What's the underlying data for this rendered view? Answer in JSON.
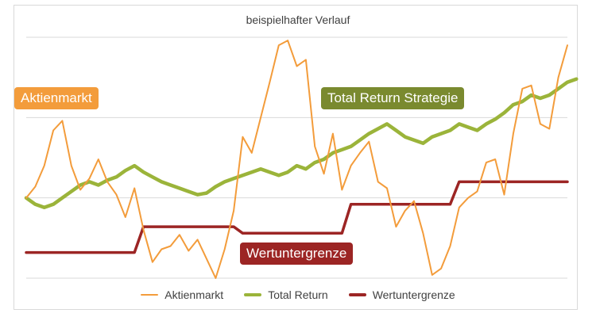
{
  "chart_data": {
    "type": "line",
    "title": "beispielhafter Verlauf",
    "grid": true,
    "legend_position": "bottom",
    "series": [
      {
        "name": "Aktienmarkt",
        "color": "#f39c3b",
        "values": [
          50,
          57,
          70,
          92,
          98,
          70,
          55,
          62,
          74,
          60,
          52,
          38,
          56,
          30,
          10,
          18,
          20,
          27,
          17,
          24,
          12,
          0,
          18,
          42,
          88,
          78,
          100,
          122,
          145,
          148,
          132,
          136,
          82,
          65,
          90,
          55,
          70,
          78,
          85,
          60,
          56,
          32,
          42,
          48,
          28,
          2,
          6,
          20,
          44,
          50,
          54,
          72,
          74,
          52,
          90,
          118,
          120,
          96,
          93,
          125,
          145
        ]
      },
      {
        "name": "Total Return",
        "color": "#9bb43a",
        "values": [
          50,
          46,
          44,
          46,
          50,
          54,
          58,
          60,
          58,
          61,
          63,
          67,
          70,
          66,
          63,
          60,
          58,
          56,
          54,
          52,
          53,
          57,
          60,
          62,
          64,
          66,
          68,
          66,
          64,
          66,
          70,
          68,
          72,
          74,
          78,
          80,
          82,
          86,
          90,
          93,
          96,
          92,
          88,
          86,
          84,
          88,
          90,
          92,
          96,
          94,
          92,
          96,
          99,
          103,
          108,
          110,
          114,
          112,
          114,
          118,
          122,
          124
        ]
      },
      {
        "name": "Wertuntergrenze",
        "color": "#9c2524",
        "x": [
          0,
          12,
          13,
          23,
          24,
          35,
          36,
          47,
          48,
          60
        ],
        "values": [
          16,
          16,
          32,
          32,
          28,
          28,
          46,
          46,
          60,
          60
        ]
      }
    ],
    "ylim": [
      0,
      150
    ],
    "annotations": [
      {
        "text": "Aktienmarkt",
        "color": "#f39c3b"
      },
      {
        "text": "Total Return Strategie",
        "color": "#7a8a2f"
      },
      {
        "text": "Wertuntergrenze",
        "color": "#9c2524"
      }
    ],
    "legend": [
      "Aktienmarkt",
      "Total Return",
      "Wertuntergrenze"
    ]
  }
}
